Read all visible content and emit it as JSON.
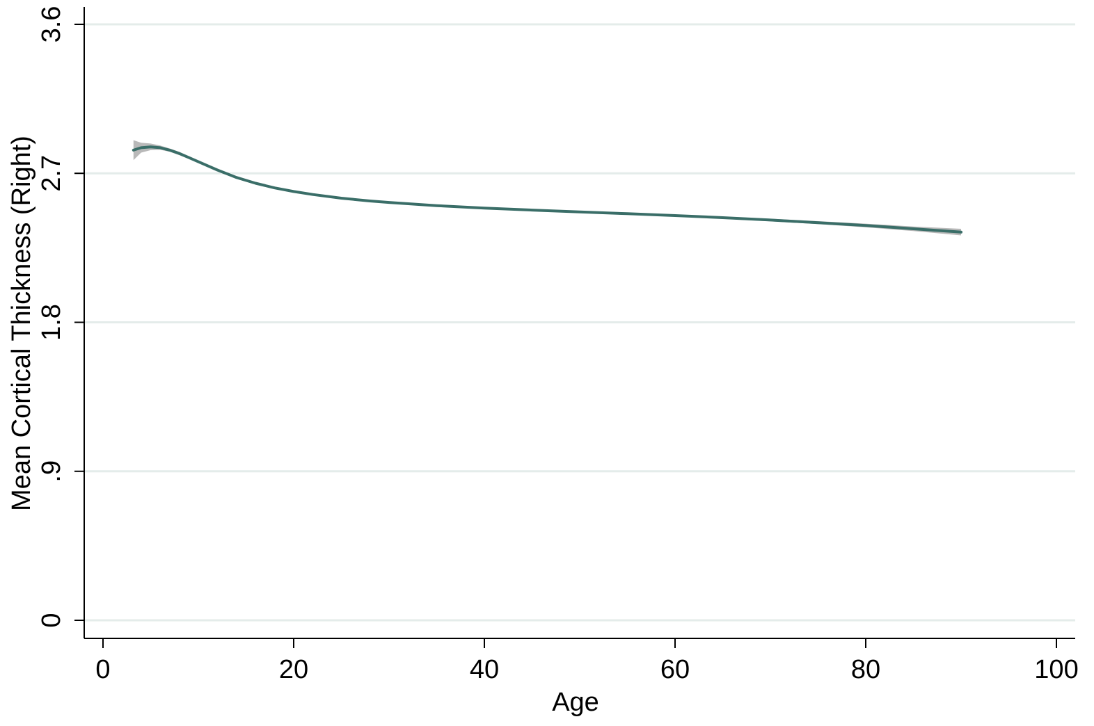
{
  "chart_data": {
    "type": "line",
    "title": "",
    "xlabel": "Age",
    "ylabel": "Mean Cortical Thickness (Right)",
    "xlim": [
      0,
      100
    ],
    "ylim": [
      0,
      3.6
    ],
    "x_ticks": [
      0,
      20,
      40,
      60,
      80,
      100
    ],
    "x_tick_labels": [
      "0",
      "20",
      "40",
      "60",
      "80",
      "100"
    ],
    "y_ticks": [
      0,
      0.9,
      1.8,
      2.7,
      3.6
    ],
    "y_tick_labels": [
      "0",
      ".9",
      "1.8",
      "2.7",
      "3.6"
    ],
    "grid": "horizontal",
    "legend": "none",
    "series": [
      {
        "x": [
          3.2,
          4,
          5,
          6,
          7,
          8,
          9,
          10,
          12,
          14,
          16,
          18,
          20,
          22,
          25,
          28,
          30,
          35,
          40,
          45,
          50,
          55,
          60,
          65,
          70,
          75,
          80,
          85,
          90
        ],
        "y": [
          2.84,
          2.855,
          2.86,
          2.855,
          2.84,
          2.82,
          2.795,
          2.77,
          2.72,
          2.675,
          2.64,
          2.612,
          2.59,
          2.572,
          2.55,
          2.533,
          2.524,
          2.505,
          2.49,
          2.478,
          2.467,
          2.456,
          2.445,
          2.432,
          2.418,
          2.402,
          2.385,
          2.365,
          2.345
        ],
        "ci_lower": [
          2.78,
          2.825,
          2.84,
          2.842,
          2.83,
          2.81,
          2.787,
          2.762,
          2.713,
          2.669,
          2.634,
          2.606,
          2.585,
          2.567,
          2.545,
          2.528,
          2.519,
          2.5,
          2.485,
          2.473,
          2.462,
          2.45,
          2.439,
          2.425,
          2.41,
          2.393,
          2.374,
          2.351,
          2.325
        ],
        "ci_upper": [
          2.9,
          2.885,
          2.88,
          2.868,
          2.85,
          2.83,
          2.803,
          2.778,
          2.727,
          2.681,
          2.646,
          2.618,
          2.595,
          2.577,
          2.555,
          2.538,
          2.529,
          2.51,
          2.495,
          2.483,
          2.472,
          2.462,
          2.451,
          2.439,
          2.426,
          2.411,
          2.396,
          2.379,
          2.365
        ]
      }
    ],
    "colors": {
      "line": "#3a6e68",
      "ci_band": "#b9b9b9",
      "grid": "#e4ecea",
      "axis": "#000000"
    }
  }
}
